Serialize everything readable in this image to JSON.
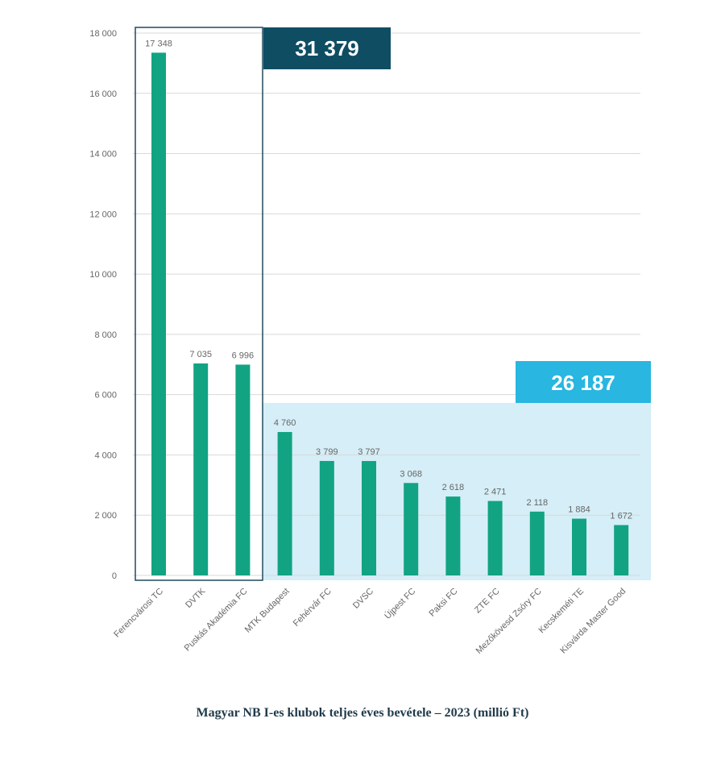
{
  "caption": "Magyar NB I-es klubok teljes éves bevétele – 2023 (millió Ft)",
  "colors": {
    "bar": "#12a383",
    "dark_box": "#0f4d63",
    "light_box": "#29b6e0",
    "light_area": "#d5eef7",
    "outline": "#1f4a5c",
    "grid": "#d9d9d9"
  },
  "chart_data": {
    "type": "bar",
    "title": "Magyar NB I-es klubok teljes éves bevétele – 2023 (millió Ft)",
    "xlabel": "",
    "ylabel": "",
    "ylim": [
      0,
      18000
    ],
    "yticks": [
      0,
      2000,
      4000,
      6000,
      8000,
      10000,
      12000,
      14000,
      16000,
      18000
    ],
    "ytick_labels": [
      "0",
      "2 000",
      "4 000",
      "6 000",
      "8 000",
      "10 000",
      "12 000",
      "14 000",
      "16 000",
      "18 000"
    ],
    "grid": true,
    "categories": [
      "Ferencvárosi TC",
      "DVTK",
      "Puskás Akadémia FC",
      "MTK Budapest",
      "Fehérvár FC",
      "DVSC",
      "Újpest FC",
      "Paksi FC",
      "ZTE FC",
      "Mezőkövesd Zsóry FC",
      "Kecskeméti TE",
      "Kisvárda Master Good"
    ],
    "values": [
      17348,
      7035,
      6996,
      4760,
      3799,
      3797,
      3068,
      2618,
      2471,
      2118,
      1884,
      1672
    ],
    "value_labels": [
      "17 348",
      "7 035",
      "6 996",
      "4 760",
      "3 799",
      "3 797",
      "3 068",
      "2 618",
      "2 471",
      "2 118",
      "1 884",
      "1 672"
    ],
    "groups": [
      {
        "label": "31 379",
        "first_index": 0,
        "last_index": 2
      },
      {
        "label": "26 187",
        "first_index": 3,
        "last_index": 11
      }
    ]
  }
}
